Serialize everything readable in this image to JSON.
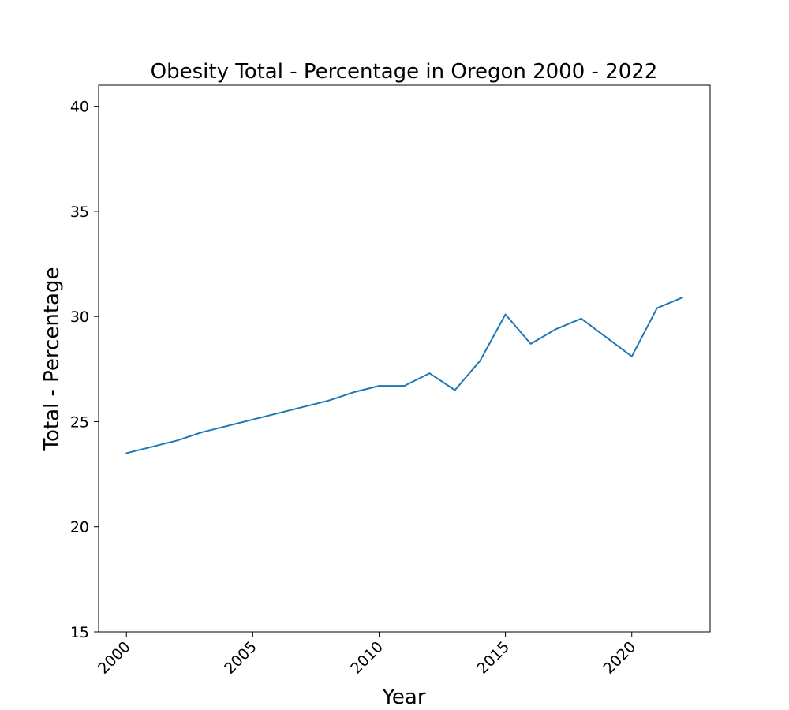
{
  "chart_data": {
    "type": "line",
    "title": "Obesity Total - Percentage in Oregon 2000 - 2022",
    "xlabel": "Year",
    "ylabel": "Total - Percentage",
    "xlim": [
      1998.9,
      2023.1
    ],
    "ylim": [
      15,
      41
    ],
    "x_ticks": [
      2000,
      2005,
      2010,
      2015,
      2020
    ],
    "y_ticks": [
      15,
      20,
      25,
      30,
      35,
      40
    ],
    "grid": false,
    "series": [
      {
        "color": "#1f77b4",
        "x": [
          2000,
          2001,
          2002,
          2003,
          2004,
          2005,
          2006,
          2007,
          2008,
          2009,
          2010,
          2011,
          2012,
          2013,
          2014,
          2015,
          2016,
          2017,
          2018,
          2019,
          2020,
          2021,
          2022
        ],
        "y": [
          23.5,
          23.8,
          24.1,
          24.5,
          24.8,
          25.1,
          25.4,
          25.7,
          26.0,
          26.4,
          26.7,
          26.7,
          27.3,
          26.5,
          27.9,
          30.1,
          28.7,
          29.4,
          29.9,
          29.0,
          28.1,
          30.4,
          30.9
        ]
      }
    ]
  }
}
